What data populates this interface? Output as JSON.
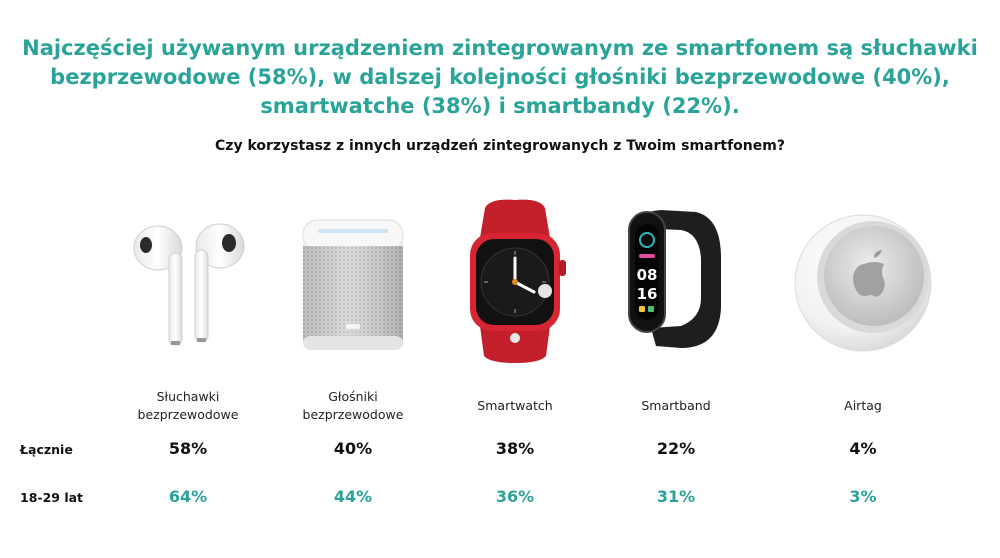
{
  "headline": {
    "line1": "Najczęściej używanym urządzeniem zintegrowanym ze smartfonem są słuchawki",
    "line2": "bezprzewodowe (58%), w dalszej kolejności głośniki bezprzewodowe (40%),",
    "line3": "smartwatche (38%) i smartbandy (22%)."
  },
  "question": "Czy korzystasz z innych urządzeń zintegrowanych z Twoim smartfonem?",
  "rows": {
    "total_label": "Łącznie",
    "young_label": "18-29 lat"
  },
  "devices": [
    {
      "label_line1": "Słuchawki",
      "label_line2": "bezprzewodowe",
      "total": "58%",
      "young": "64%",
      "icon": "earbuds-icon"
    },
    {
      "label_line1": "Głośniki",
      "label_line2": "bezprzewodowe",
      "total": "40%",
      "young": "44%",
      "icon": "smart-speaker-icon"
    },
    {
      "label_line1": "Smartwatch",
      "label_line2": "",
      "total": "38%",
      "young": "36%",
      "icon": "smartwatch-icon"
    },
    {
      "label_line1": "Smartband",
      "label_line2": "",
      "total": "22%",
      "young": "31%",
      "icon": "smartband-icon"
    },
    {
      "label_line1": "Airtag",
      "label_line2": "",
      "total": "4%",
      "young": "3%",
      "icon": "airtag-icon"
    }
  ],
  "band_display": {
    "time_top": "08",
    "time_bottom": "16"
  },
  "colors": {
    "accent": "#2aa399",
    "watch_red": "#d62633",
    "band_dark": "#1e1e1e"
  }
}
